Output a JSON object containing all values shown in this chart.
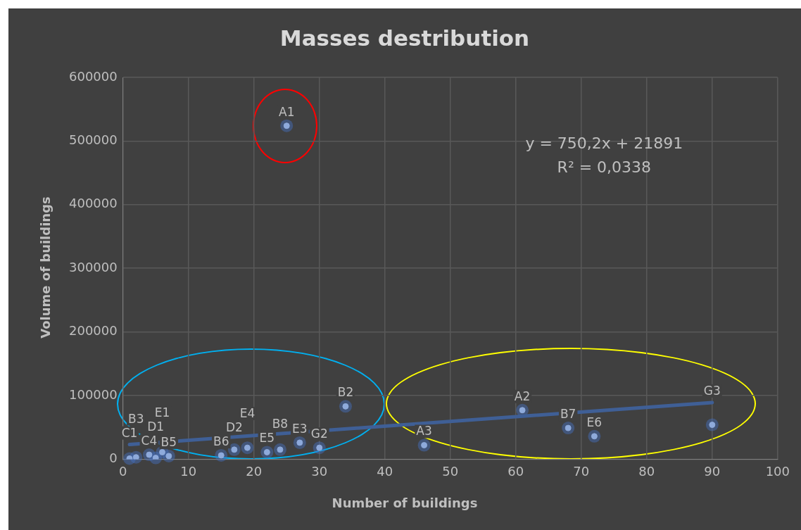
{
  "chart_data": {
    "type": "scatter",
    "title": "Masses destribution",
    "xlabel": "Number of buildings",
    "ylabel": "Volume of buildings",
    "xlim": [
      0,
      100
    ],
    "xticks": [
      0,
      10,
      20,
      30,
      40,
      50,
      60,
      70,
      80,
      90,
      100
    ],
    "ylim": [
      0,
      600000
    ],
    "yticks": [
      0,
      100000,
      200000,
      300000,
      400000,
      500000,
      600000
    ],
    "grid": true,
    "legend": false,
    "series": [
      {
        "type": "scatter",
        "color": "#8eaadb",
        "marker": "circle",
        "x": [
          1,
          2,
          4,
          5,
          6,
          7,
          15,
          17,
          19,
          22,
          24,
          25,
          27,
          30,
          34,
          46,
          61,
          68,
          72,
          90
        ],
        "values": [
          1000,
          3000,
          7000,
          2000,
          11000,
          5000,
          6000,
          15000,
          18000,
          11000,
          15000,
          524000,
          26000,
          18000,
          83000,
          22000,
          77000,
          49000,
          36000,
          54000
        ]
      },
      {
        "type": "line",
        "color": "#3f5f96",
        "x": [
          1,
          90
        ],
        "values": [
          23000,
          89000
        ]
      }
    ],
    "annotations": [
      "y = 750,2x + 21891",
      "R² = 0,0338",
      {
        "text": "C1",
        "x": 1,
        "y": 1000
      },
      {
        "text": "B3",
        "x": 2,
        "y": 3000
      },
      {
        "text": "C4",
        "x": 4,
        "y": 7000
      },
      {
        "text": "D1",
        "x": 5,
        "y": 2000
      },
      {
        "text": "E1",
        "x": 6,
        "y": 11000
      },
      {
        "text": "B5",
        "x": 7,
        "y": 5000
      },
      {
        "text": "B6",
        "x": 15,
        "y": 6000
      },
      {
        "text": "D2",
        "x": 17,
        "y": 15000
      },
      {
        "text": "E4",
        "x": 19,
        "y": 18000
      },
      {
        "text": "E5",
        "x": 22,
        "y": 11000
      },
      {
        "text": "B8",
        "x": 24,
        "y": 15000
      },
      {
        "text": "A1",
        "x": 25,
        "y": 524000
      },
      {
        "text": "E3",
        "x": 27,
        "y": 26000
      },
      {
        "text": "G2",
        "x": 30,
        "y": 18000
      },
      {
        "text": "B2",
        "x": 34,
        "y": 83000
      },
      {
        "text": "A3",
        "x": 46,
        "y": 22000
      },
      {
        "text": "A2",
        "x": 61,
        "y": 77000
      },
      {
        "text": "B7",
        "x": 68,
        "y": 49000
      },
      {
        "text": "E6",
        "x": 72,
        "y": 36000
      },
      {
        "text": "G3",
        "x": 90,
        "y": 54000
      }
    ]
  }
}
